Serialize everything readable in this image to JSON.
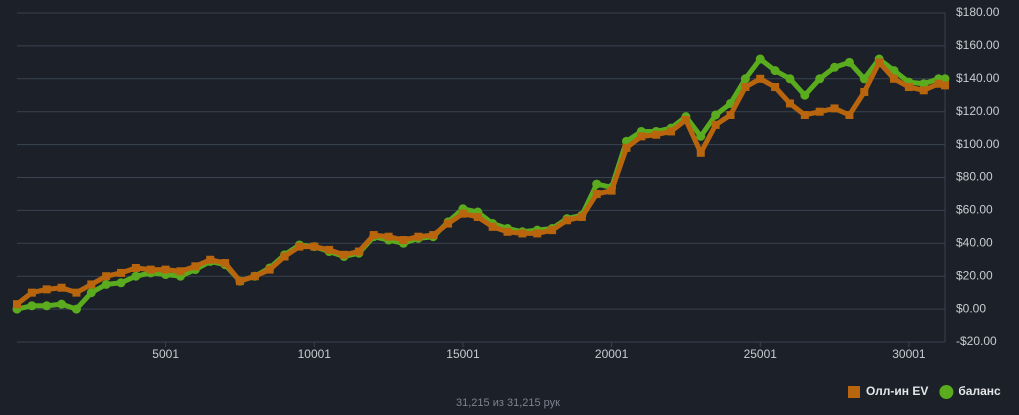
{
  "chart_data": {
    "type": "line",
    "footer": "31,215 из 31,215 рук",
    "x": [
      1,
      500,
      1000,
      1500,
      2000,
      2500,
      3000,
      3500,
      4000,
      4500,
      5000,
      5500,
      6000,
      6500,
      7000,
      7500,
      8000,
      8500,
      9000,
      9500,
      10000,
      10500,
      11000,
      11500,
      12000,
      12500,
      13000,
      13500,
      14000,
      14500,
      15000,
      15500,
      16000,
      16500,
      17000,
      17500,
      18000,
      18500,
      19000,
      19500,
      20000,
      20500,
      21000,
      21500,
      22000,
      22500,
      23000,
      23500,
      24000,
      24500,
      25000,
      25500,
      26000,
      26500,
      27000,
      27500,
      28000,
      28500,
      29000,
      29500,
      30000,
      30500,
      31000,
      31215
    ],
    "series": [
      {
        "name": "баланс",
        "color": "#5aab1e",
        "marker": "circle",
        "values": [
          0,
          2,
          2,
          3,
          0,
          10,
          15,
          16,
          20,
          22,
          21,
          20,
          24,
          29,
          27,
          17,
          20,
          25,
          33,
          39,
          38,
          35,
          32,
          34,
          44,
          42,
          40,
          43,
          44,
          53,
          61,
          59,
          52,
          49,
          47,
          48,
          49,
          55,
          57,
          76,
          74,
          102,
          108,
          108,
          110,
          117,
          105,
          118,
          125,
          140,
          152,
          145,
          140,
          130,
          140,
          147,
          150,
          140,
          152,
          145,
          138,
          137,
          140,
          140
        ]
      },
      {
        "name": "Олл-ин EV",
        "color": "#b8650e",
        "marker": "square",
        "values": [
          3,
          10,
          12,
          13,
          10,
          15,
          20,
          22,
          25,
          24,
          24,
          23,
          26,
          30,
          28,
          17,
          20,
          24,
          32,
          38,
          38,
          36,
          33,
          35,
          45,
          44,
          42,
          44,
          45,
          52,
          58,
          56,
          50,
          47,
          46,
          46,
          48,
          54,
          56,
          70,
          72,
          98,
          105,
          106,
          108,
          115,
          95,
          112,
          118,
          135,
          140,
          135,
          125,
          118,
          120,
          122,
          118,
          132,
          150,
          140,
          135,
          133,
          137,
          136
        ]
      }
    ],
    "xlim": [
      1,
      31215
    ],
    "xticks": [
      5001,
      10001,
      15001,
      20001,
      25001,
      30001
    ],
    "ylim": [
      -20,
      180
    ],
    "yticks": [
      {
        "value": -20,
        "label": "-$20.00"
      },
      {
        "value": 0,
        "label": "$0.00"
      },
      {
        "value": 20,
        "label": "$20.00"
      },
      {
        "value": 40,
        "label": "$40.00"
      },
      {
        "value": 60,
        "label": "$60.00"
      },
      {
        "value": 80,
        "label": "$80.00"
      },
      {
        "value": 100,
        "label": "$100.00"
      },
      {
        "value": 120,
        "label": "$120.00"
      },
      {
        "value": 140,
        "label": "$140.00"
      },
      {
        "value": 160,
        "label": "$160.00"
      },
      {
        "value": 180,
        "label": "$180.00"
      }
    ],
    "grid": true,
    "legend": "bottom-right"
  }
}
